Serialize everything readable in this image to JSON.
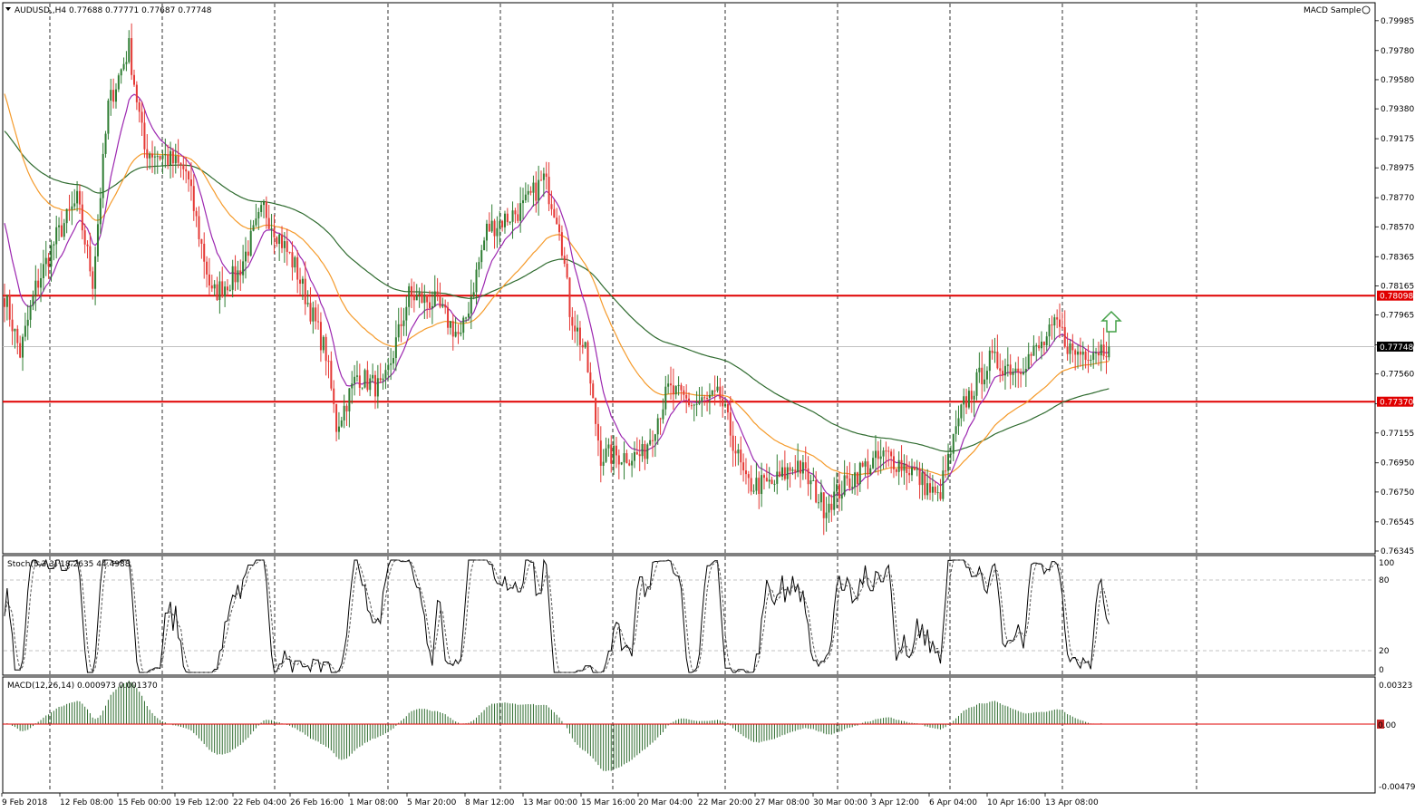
{
  "header": {
    "symbol_info": "AUDUSD,,H4  0.77688 0.77771 0.77687 0.77748",
    "indicator_name": "MACD Sample"
  },
  "price_axis": {
    "labels": [
      "0.79985",
      "0.79780",
      "0.79580",
      "0.79380",
      "0.79175",
      "0.78975",
      "0.78770",
      "0.78570",
      "0.78365",
      "0.78165",
      "0.77965",
      "0.77760",
      "0.77560",
      "0.77355",
      "0.77155",
      "0.76950",
      "0.76750",
      "0.76545",
      "0.76345"
    ],
    "current_price": "0.77748",
    "resistance_label": "0.78098",
    "support_label": "0.77370"
  },
  "time_axis": {
    "labels": [
      "9 Feb 2018",
      "12 Feb 08:00",
      "15 Feb 00:00",
      "19 Feb 12:00",
      "22 Feb 04:00",
      "26 Feb 16:00",
      "1 Mar 08:00",
      "5 Mar 20:00",
      "8 Mar 12:00",
      "13 Mar 00:00",
      "15 Mar 16:00",
      "20 Mar 04:00",
      "22 Mar 20:00",
      "27 Mar 08:00",
      "30 Mar 00:00",
      "3 Apr 12:00",
      "6 Apr 04:00",
      "10 Apr 16:00",
      "13 Apr 08:00"
    ]
  },
  "stoch": {
    "title": "Stoch(5,3,3) 18.2635 44.4988",
    "levels": [
      "100",
      "80",
      "20",
      "0"
    ]
  },
  "macd": {
    "title": "MACD(12,26,14) 0.000973 0.001370",
    "levels": [
      "0.00323",
      "0.00",
      "-0.00479"
    ]
  },
  "colors": {
    "bull": "#2e7d32",
    "bear": "#e53935",
    "level_line": "#e00000",
    "ma_fast": "#9c27b0",
    "ma_mid": "#f59a2a",
    "ma_slow": "#2f6b2f",
    "arrow": "#43a047",
    "macd_hist": "#2e6b2e"
  },
  "chart_data": {
    "type": "candlestick",
    "y_range": [
      0.76345,
      0.8004
    ],
    "resistance": 0.78098,
    "support": 0.7737,
    "last_price": 0.77748,
    "anchors": [
      [
        0,
        0.781
      ],
      [
        6,
        0.777
      ],
      [
        12,
        0.7815
      ],
      [
        20,
        0.785
      ],
      [
        28,
        0.7875
      ],
      [
        34,
        0.782
      ],
      [
        40,
        0.794
      ],
      [
        48,
        0.798
      ],
      [
        54,
        0.791
      ],
      [
        62,
        0.7905
      ],
      [
        70,
        0.7895
      ],
      [
        80,
        0.781
      ],
      [
        90,
        0.7825
      ],
      [
        100,
        0.787
      ],
      [
        112,
        0.783
      ],
      [
        124,
        0.777
      ],
      [
        128,
        0.772
      ],
      [
        136,
        0.7755
      ],
      [
        146,
        0.7745
      ],
      [
        156,
        0.781
      ],
      [
        166,
        0.7805
      ],
      [
        176,
        0.778
      ],
      [
        186,
        0.7855
      ],
      [
        200,
        0.787
      ],
      [
        208,
        0.789
      ],
      [
        214,
        0.786
      ],
      [
        218,
        0.78
      ],
      [
        224,
        0.777
      ],
      [
        230,
        0.77
      ],
      [
        246,
        0.77
      ],
      [
        256,
        0.7745
      ],
      [
        266,
        0.7735
      ],
      [
        276,
        0.774
      ],
      [
        286,
        0.768
      ],
      [
        296,
        0.768
      ],
      [
        306,
        0.7695
      ],
      [
        316,
        0.7665
      ],
      [
        330,
        0.769
      ],
      [
        340,
        0.77
      ],
      [
        350,
        0.769
      ],
      [
        360,
        0.767
      ],
      [
        370,
        0.7735
      ],
      [
        380,
        0.7765
      ],
      [
        390,
        0.776
      ],
      [
        400,
        0.7775
      ],
      [
        406,
        0.779
      ],
      [
        412,
        0.777
      ],
      [
        426,
        0.7775
      ]
    ]
  }
}
